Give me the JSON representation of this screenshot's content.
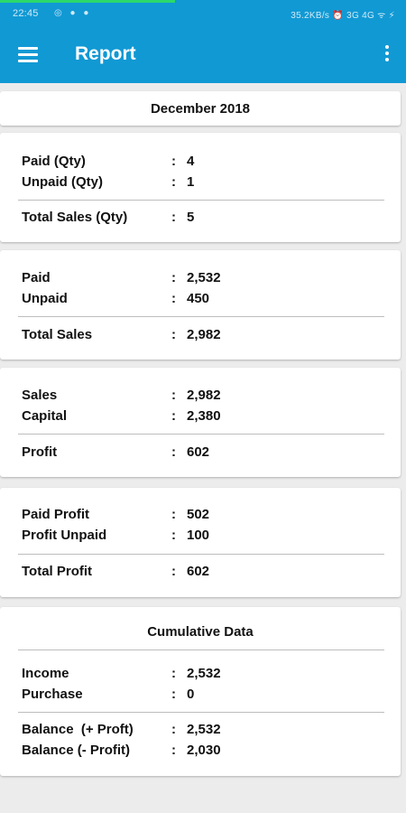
{
  "status_bar": {
    "time": "22:45",
    "right_text": "35.2KB/s ⏰ 3G 4G ᯤ ⚡"
  },
  "app_bar": {
    "title": "Report"
  },
  "period": "December 2018",
  "qty_card": {
    "rows": [
      {
        "label": "Paid (Qty)",
        "value": "4"
      },
      {
        "label": "Unpaid (Qty)",
        "value": "1"
      }
    ],
    "total": {
      "label": "Total Sales (Qty)",
      "value": "5"
    }
  },
  "sales_card": {
    "rows": [
      {
        "label": "Paid",
        "value": "2,532"
      },
      {
        "label": "Unpaid",
        "value": "450"
      }
    ],
    "total": {
      "label": "Total Sales",
      "value": "2,982"
    }
  },
  "profit_card": {
    "rows": [
      {
        "label": "Sales",
        "value": "2,982"
      },
      {
        "label": "Capital",
        "value": "2,380"
      }
    ],
    "total": {
      "label": "Profit",
      "value": "602"
    }
  },
  "profit_split_card": {
    "rows": [
      {
        "label": "Paid Profit",
        "value": "502"
      },
      {
        "label": "Profit Unpaid",
        "value": "100"
      }
    ],
    "total": {
      "label": "Total Profit",
      "value": "602"
    }
  },
  "cumulative_card": {
    "heading": "Cumulative Data",
    "rows": [
      {
        "label": "Income",
        "value": "2,532"
      },
      {
        "label": "Purchase",
        "value": "0"
      }
    ],
    "balances": [
      {
        "label": "Balance  (+ Proft)",
        "value": "2,532"
      },
      {
        "label": "Balance (- Profit)",
        "value": "2,030"
      }
    ]
  },
  "separator": ":",
  "colors": {
    "primary": "#1199d4",
    "background": "#ececec",
    "card": "#ffffff",
    "progress": "#2bd96b"
  }
}
